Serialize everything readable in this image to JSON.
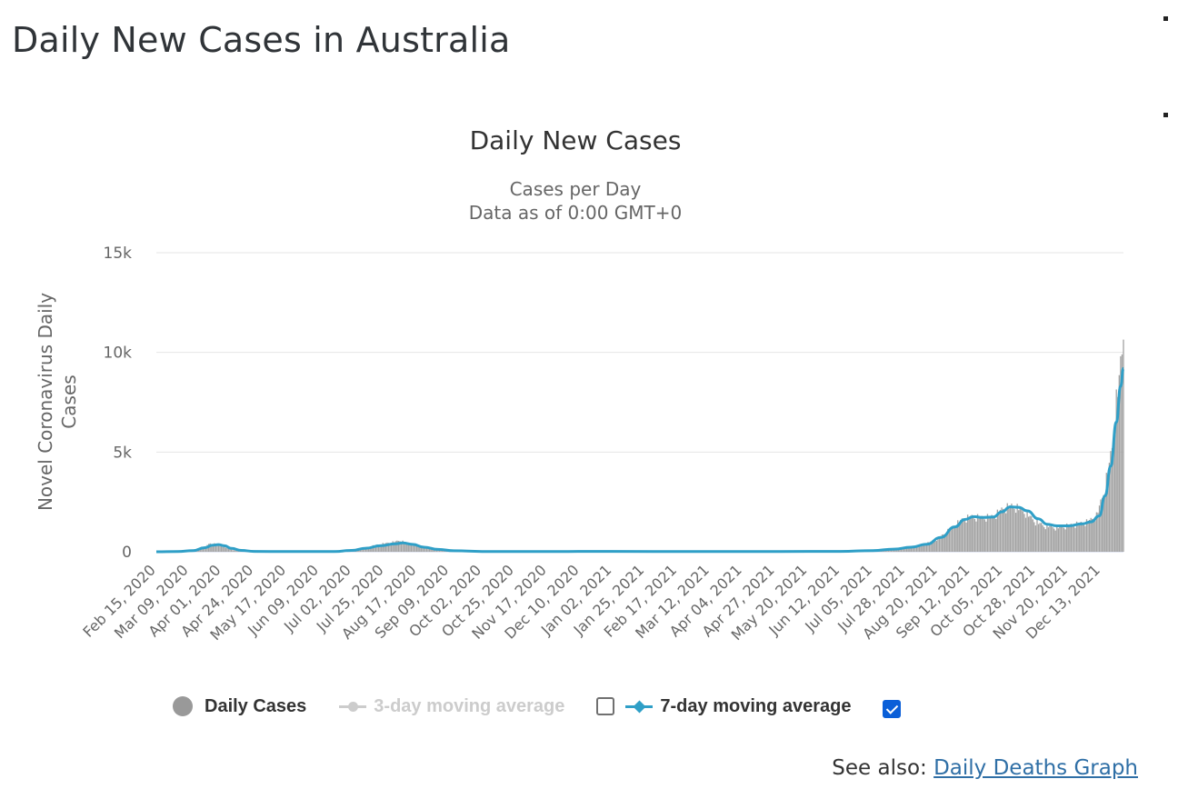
{
  "page": {
    "title": "Daily New Cases in Australia",
    "see_also_label": "See also:",
    "see_also_link": "Daily Deaths Graph"
  },
  "colors": {
    "bars": "#a3a3a3",
    "ma7": "#2f9fc7",
    "ma3": "#cccccc",
    "grid": "#e6e6e6",
    "link": "#2f6fa6",
    "checkbox_on": "#0a5fd8"
  },
  "legend": {
    "daily": {
      "label": "Daily Cases",
      "icon": "circle-marker",
      "color": "#999999"
    },
    "ma3": {
      "label": "3-day moving average",
      "enabled": false,
      "icon": "circle-marker",
      "color": "#cccccc"
    },
    "ma7": {
      "label": "7-day moving average",
      "enabled": true,
      "icon": "diamond-marker",
      "color": "#2f9fc7"
    }
  },
  "chart_data": {
    "type": "bar",
    "title": "Daily New Cases",
    "subtitle": [
      "Cases per Day",
      "Data as of 0:00 GMT+0"
    ],
    "ylabel": "Novel Coronavirus Daily Cases",
    "ylim": [
      0,
      15000
    ],
    "yticks": [
      0,
      5000,
      10000,
      15000
    ],
    "ytick_labels": [
      "0",
      "5k",
      "10k",
      "15k"
    ],
    "x_start": "2020-02-15",
    "x_end": "2021-12-29",
    "xtick_labels": [
      "Feb 15, 2020",
      "Mar 09, 2020",
      "Apr 01, 2020",
      "Apr 24, 2020",
      "May 17, 2020",
      "Jun 09, 2020",
      "Jul 02, 2020",
      "Jul 25, 2020",
      "Aug 17, 2020",
      "Sep 09, 2020",
      "Oct 02, 2020",
      "Oct 25, 2020",
      "Nov 17, 2020",
      "Dec 10, 2020",
      "Jan 02, 2021",
      "Jan 25, 2021",
      "Feb 17, 2021",
      "Mar 12, 2021",
      "Apr 04, 2021",
      "Apr 27, 2021",
      "May 20, 2021",
      "Jun 12, 2021",
      "Jul 05, 2021",
      "Jul 28, 2021",
      "Aug 20, 2021",
      "Sep 12, 2021",
      "Oct 05, 2021",
      "Oct 28, 2021",
      "Nov 20, 2021",
      "Dec 13, 2021"
    ],
    "grid": true,
    "legend_position": "bottom",
    "series": [
      {
        "name": "Daily Cases",
        "kind": "bar",
        "points": [
          [
            "2020-02-15",
            0
          ],
          [
            "2020-03-01",
            10
          ],
          [
            "2020-03-10",
            40
          ],
          [
            "2020-03-16",
            120
          ],
          [
            "2020-03-20",
            240
          ],
          [
            "2020-03-24",
            420
          ],
          [
            "2020-03-28",
            380
          ],
          [
            "2020-04-01",
            300
          ],
          [
            "2020-04-05",
            180
          ],
          [
            "2020-04-10",
            70
          ],
          [
            "2020-04-18",
            25
          ],
          [
            "2020-05-01",
            15
          ],
          [
            "2020-05-25",
            10
          ],
          [
            "2020-06-15",
            15
          ],
          [
            "2020-06-28",
            60
          ],
          [
            "2020-07-06",
            120
          ],
          [
            "2020-07-14",
            250
          ],
          [
            "2020-07-22",
            380
          ],
          [
            "2020-07-31",
            480
          ],
          [
            "2020-08-05",
            560
          ],
          [
            "2020-08-10",
            430
          ],
          [
            "2020-08-17",
            300
          ],
          [
            "2020-08-25",
            170
          ],
          [
            "2020-09-03",
            80
          ],
          [
            "2020-09-15",
            40
          ],
          [
            "2020-10-01",
            15
          ],
          [
            "2020-11-01",
            10
          ],
          [
            "2021-01-02",
            20
          ],
          [
            "2021-03-01",
            10
          ],
          [
            "2021-05-01",
            15
          ],
          [
            "2021-06-20",
            25
          ],
          [
            "2021-07-05",
            50
          ],
          [
            "2021-07-15",
            120
          ],
          [
            "2021-07-28",
            200
          ],
          [
            "2021-08-08",
            300
          ],
          [
            "2021-08-20",
            650
          ],
          [
            "2021-08-28",
            1100
          ],
          [
            "2021-09-05",
            1550
          ],
          [
            "2021-09-12",
            1750
          ],
          [
            "2021-09-20",
            1700
          ],
          [
            "2021-09-28",
            1750
          ],
          [
            "2021-10-05",
            2150
          ],
          [
            "2021-10-12",
            2300
          ],
          [
            "2021-10-20",
            2000
          ],
          [
            "2021-10-28",
            1500
          ],
          [
            "2021-11-03",
            1300
          ],
          [
            "2021-11-12",
            1200
          ],
          [
            "2021-11-20",
            1300
          ],
          [
            "2021-11-28",
            1400
          ],
          [
            "2021-12-04",
            1500
          ],
          [
            "2021-12-10",
            1800
          ],
          [
            "2021-12-14",
            2700
          ],
          [
            "2021-12-18",
            3900
          ],
          [
            "2021-12-21",
            5200
          ],
          [
            "2021-12-24",
            7400
          ],
          [
            "2021-12-26",
            8600
          ],
          [
            "2021-12-28",
            9900
          ],
          [
            "2021-12-29",
            11200
          ]
        ]
      },
      {
        "name": "7-day moving average",
        "kind": "line",
        "points": [
          [
            "2020-02-15",
            0
          ],
          [
            "2020-03-01",
            10
          ],
          [
            "2020-03-12",
            60
          ],
          [
            "2020-03-20",
            200
          ],
          [
            "2020-03-26",
            330
          ],
          [
            "2020-03-30",
            360
          ],
          [
            "2020-04-03",
            300
          ],
          [
            "2020-04-08",
            170
          ],
          [
            "2020-04-15",
            70
          ],
          [
            "2020-04-24",
            20
          ],
          [
            "2020-05-17",
            10
          ],
          [
            "2020-06-20",
            15
          ],
          [
            "2020-07-02",
            70
          ],
          [
            "2020-07-12",
            180
          ],
          [
            "2020-07-22",
            300
          ],
          [
            "2020-08-02",
            400
          ],
          [
            "2020-08-07",
            440
          ],
          [
            "2020-08-14",
            370
          ],
          [
            "2020-08-22",
            230
          ],
          [
            "2020-09-01",
            120
          ],
          [
            "2020-09-12",
            50
          ],
          [
            "2020-10-02",
            15
          ],
          [
            "2020-11-01",
            10
          ],
          [
            "2021-01-02",
            20
          ],
          [
            "2021-03-01",
            10
          ],
          [
            "2021-05-01",
            15
          ],
          [
            "2021-06-12",
            20
          ],
          [
            "2021-07-05",
            60
          ],
          [
            "2021-07-20",
            130
          ],
          [
            "2021-08-01",
            230
          ],
          [
            "2021-08-12",
            380
          ],
          [
            "2021-08-22",
            720
          ],
          [
            "2021-09-01",
            1250
          ],
          [
            "2021-09-08",
            1620
          ],
          [
            "2021-09-14",
            1760
          ],
          [
            "2021-09-21",
            1720
          ],
          [
            "2021-09-28",
            1740
          ],
          [
            "2021-10-04",
            2000
          ],
          [
            "2021-10-10",
            2250
          ],
          [
            "2021-10-16",
            2230
          ],
          [
            "2021-10-22",
            2050
          ],
          [
            "2021-10-30",
            1650
          ],
          [
            "2021-11-05",
            1380
          ],
          [
            "2021-11-12",
            1300
          ],
          [
            "2021-11-20",
            1300
          ],
          [
            "2021-11-30",
            1400
          ],
          [
            "2021-12-06",
            1500
          ],
          [
            "2021-12-12",
            1800
          ],
          [
            "2021-12-16",
            2800
          ],
          [
            "2021-12-20",
            4300
          ],
          [
            "2021-12-24",
            6500
          ],
          [
            "2021-12-27",
            8300
          ],
          [
            "2021-12-29",
            9200
          ]
        ]
      }
    ]
  }
}
